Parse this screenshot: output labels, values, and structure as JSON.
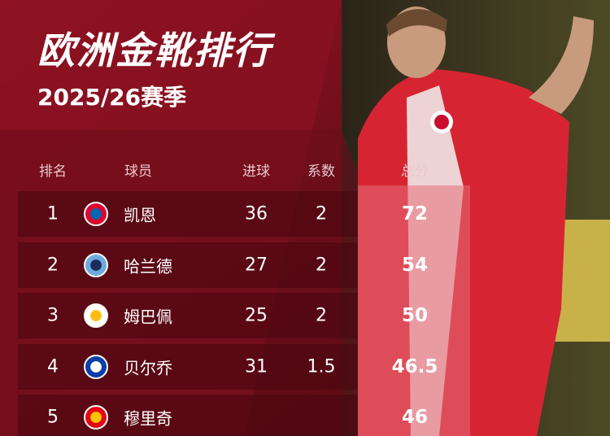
{
  "header": {
    "title": "欧洲金靴排行",
    "subtitle": "2025/26赛季"
  },
  "table": {
    "columns": [
      "排名",
      "球员",
      "进球",
      "系数",
      "总分"
    ],
    "rows": [
      [
        "1",
        "凯恩",
        "36",
        "2",
        "72"
      ],
      [
        "2",
        "哈兰德",
        "27",
        "2",
        "54"
      ],
      [
        "3",
        "姆巴佩",
        "25",
        "2",
        "50"
      ],
      [
        "4",
        "贝尔乔",
        "31",
        "1.5",
        "46.5"
      ],
      [
        "5",
        "穆里奇",
        "",
        "",
        "46"
      ]
    ]
  }
}
